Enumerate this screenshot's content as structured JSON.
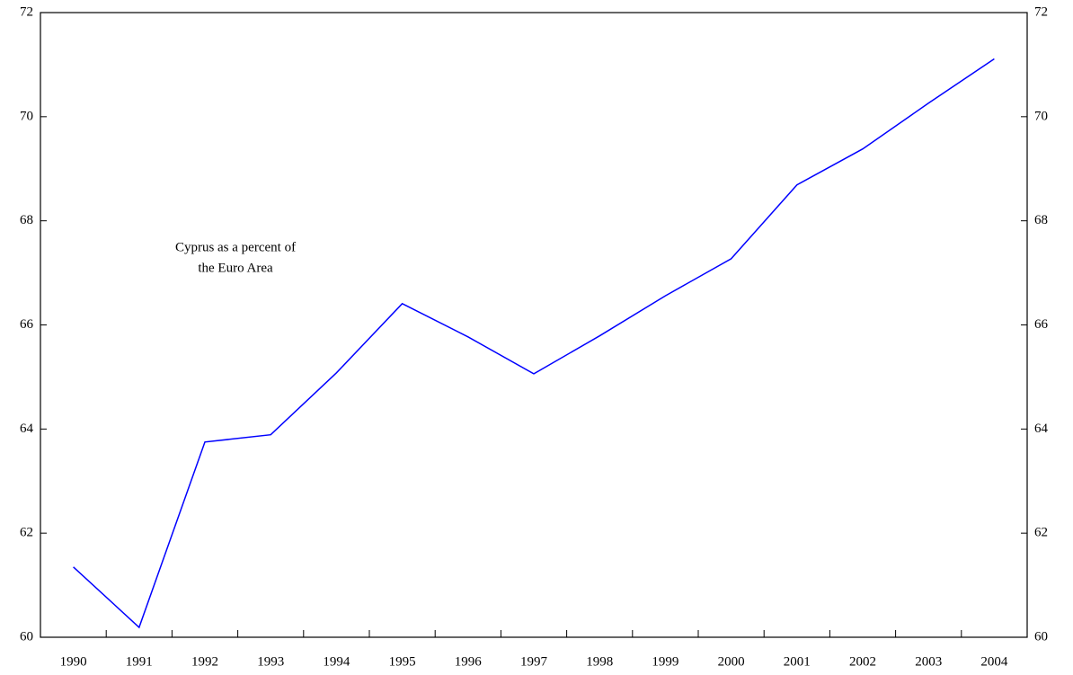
{
  "chart_data": {
    "type": "line",
    "annotation": [
      "Cyprus as a percent of",
      "the Euro Area"
    ],
    "categories": [
      "1990",
      "1991",
      "1992",
      "1993",
      "1994",
      "1995",
      "1996",
      "1997",
      "1998",
      "1999",
      "2000",
      "2001",
      "2002",
      "2003",
      "2004"
    ],
    "series": [
      {
        "color": "#0000ff",
        "values": [
          61.35,
          60.19,
          63.75,
          63.89,
          65.08,
          66.41,
          65.77,
          65.06,
          65.79,
          66.56,
          67.27,
          68.69,
          69.38,
          70.26,
          71.11
        ]
      }
    ],
    "ylim": [
      60,
      72
    ],
    "yticks": [
      60,
      62,
      64,
      66,
      68,
      70,
      72
    ],
    "y2lim": [
      60,
      72
    ],
    "y2ticks": [
      60,
      62,
      64,
      66,
      68,
      70,
      72
    ],
    "grid": false
  }
}
